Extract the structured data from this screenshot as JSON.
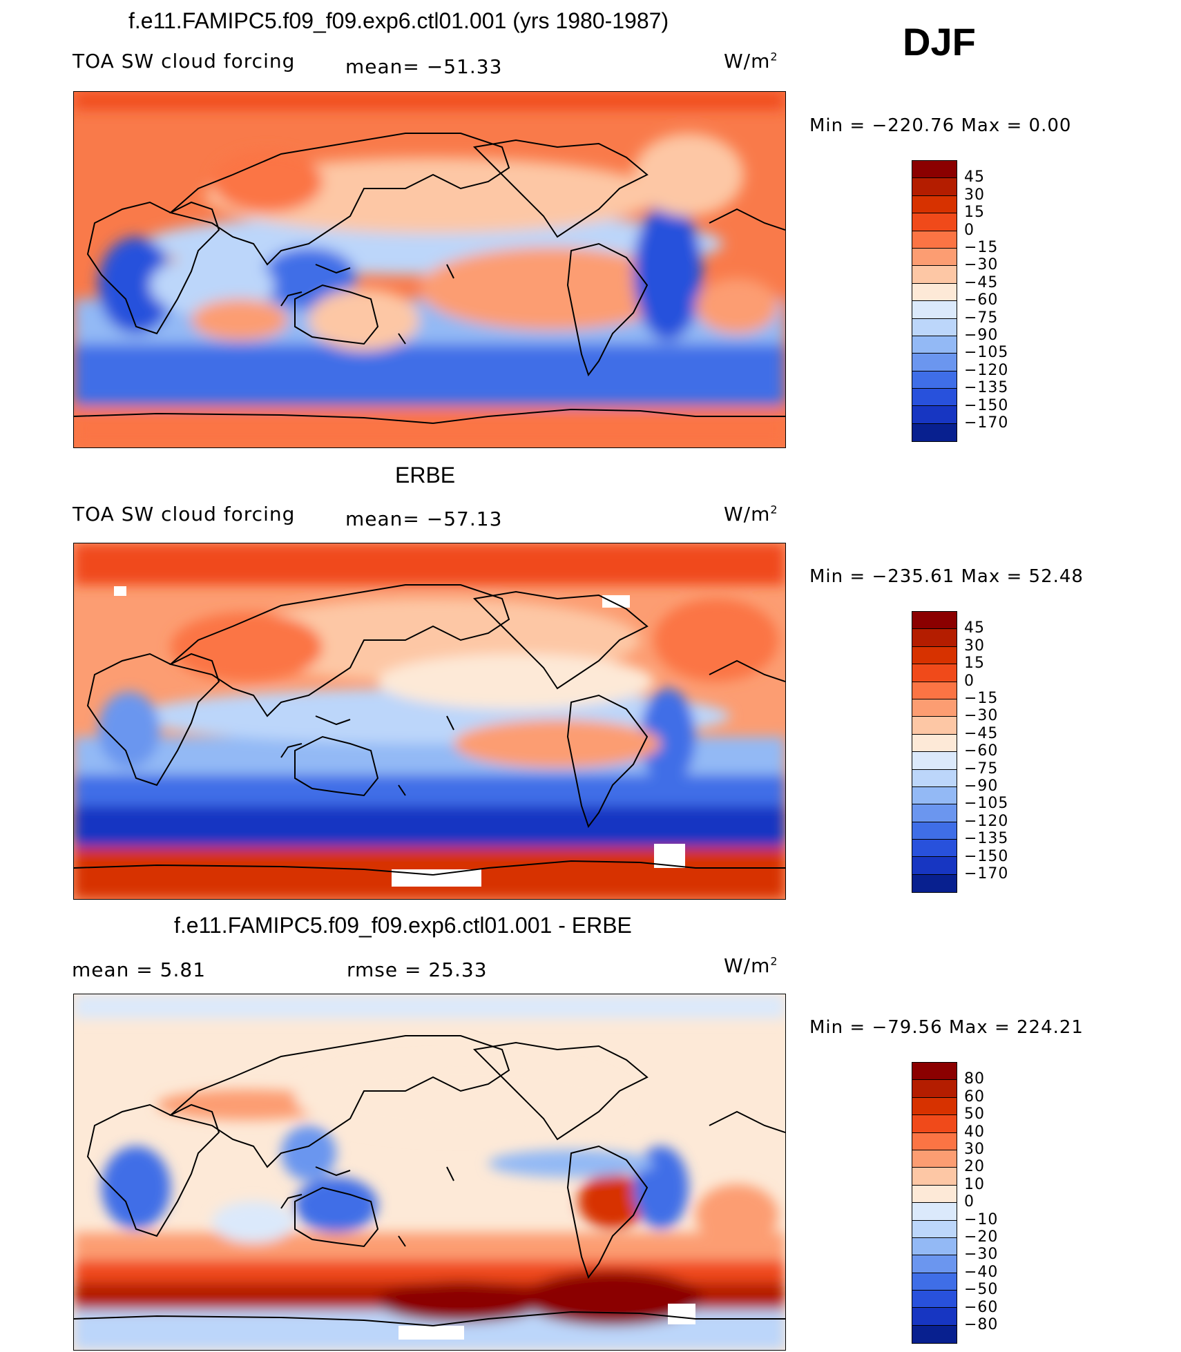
{
  "season": "DJF",
  "panels": [
    {
      "title": "f.e11.FAMIPC5.f09_f09.exp6.ctl01.001 (yrs 1980-1987)",
      "variable": "TOA SW cloud forcing",
      "stat1": "mean=  −51.33",
      "units_base": "W/m",
      "units_exp": "2",
      "minmax": "Min  =  −220.76  Max  =     0.00",
      "colorbar_colors": [
        "#8b0000",
        "#b41d00",
        "#d73200",
        "#f04a1a",
        "#fb7444",
        "#fc9d72",
        "#fdc7a5",
        "#fde9d7",
        "#dbe9fb",
        "#bcd6fa",
        "#93b9f5",
        "#6b96ef",
        "#3f6ee7",
        "#2851dc",
        "#1736c2",
        "#08208f"
      ],
      "colorbar_labels": [
        "45",
        "30",
        "15",
        "0",
        "−15",
        "−30",
        "−45",
        "−60",
        "−75",
        "−90",
        "−105",
        "−120",
        "−135",
        "−150",
        "−170"
      ]
    },
    {
      "title": "ERBE",
      "variable": "TOA SW cloud forcing",
      "stat1": "mean=  −57.13",
      "units_base": "W/m",
      "units_exp": "2",
      "minmax": "Min  =  −235.61  Max  =    52.48",
      "colorbar_colors": [
        "#8b0000",
        "#b41d00",
        "#d73200",
        "#f04a1a",
        "#fb7444",
        "#fc9d72",
        "#fdc7a5",
        "#fde9d7",
        "#dbe9fb",
        "#bcd6fa",
        "#93b9f5",
        "#6b96ef",
        "#3f6ee7",
        "#2851dc",
        "#1736c2",
        "#08208f"
      ],
      "colorbar_labels": [
        "45",
        "30",
        "15",
        "0",
        "−15",
        "−30",
        "−45",
        "−60",
        "−75",
        "−90",
        "−105",
        "−120",
        "−135",
        "−150",
        "−170"
      ]
    },
    {
      "title": "f.e11.FAMIPC5.f09_f09.exp6.ctl01.001 - ERBE",
      "stat1": "mean  =      5.81",
      "stat2": "rmse  =     25.33",
      "units_base": "W/m",
      "units_exp": "2",
      "minmax": "Min  =  −79.56  Max  =  224.21",
      "colorbar_colors": [
        "#8b0000",
        "#b41d00",
        "#d73200",
        "#f04a1a",
        "#fb7444",
        "#fc9d72",
        "#fdc7a5",
        "#fde9d7",
        "#dbe9fb",
        "#bcd6fa",
        "#93b9f5",
        "#6b96ef",
        "#3f6ee7",
        "#2851dc",
        "#1736c2",
        "#08208f"
      ],
      "colorbar_labels": [
        "80",
        "60",
        "50",
        "40",
        "30",
        "20",
        "10",
        "0",
        "−10",
        "−20",
        "−30",
        "−40",
        "−50",
        "−60",
        "−80"
      ]
    }
  ]
}
